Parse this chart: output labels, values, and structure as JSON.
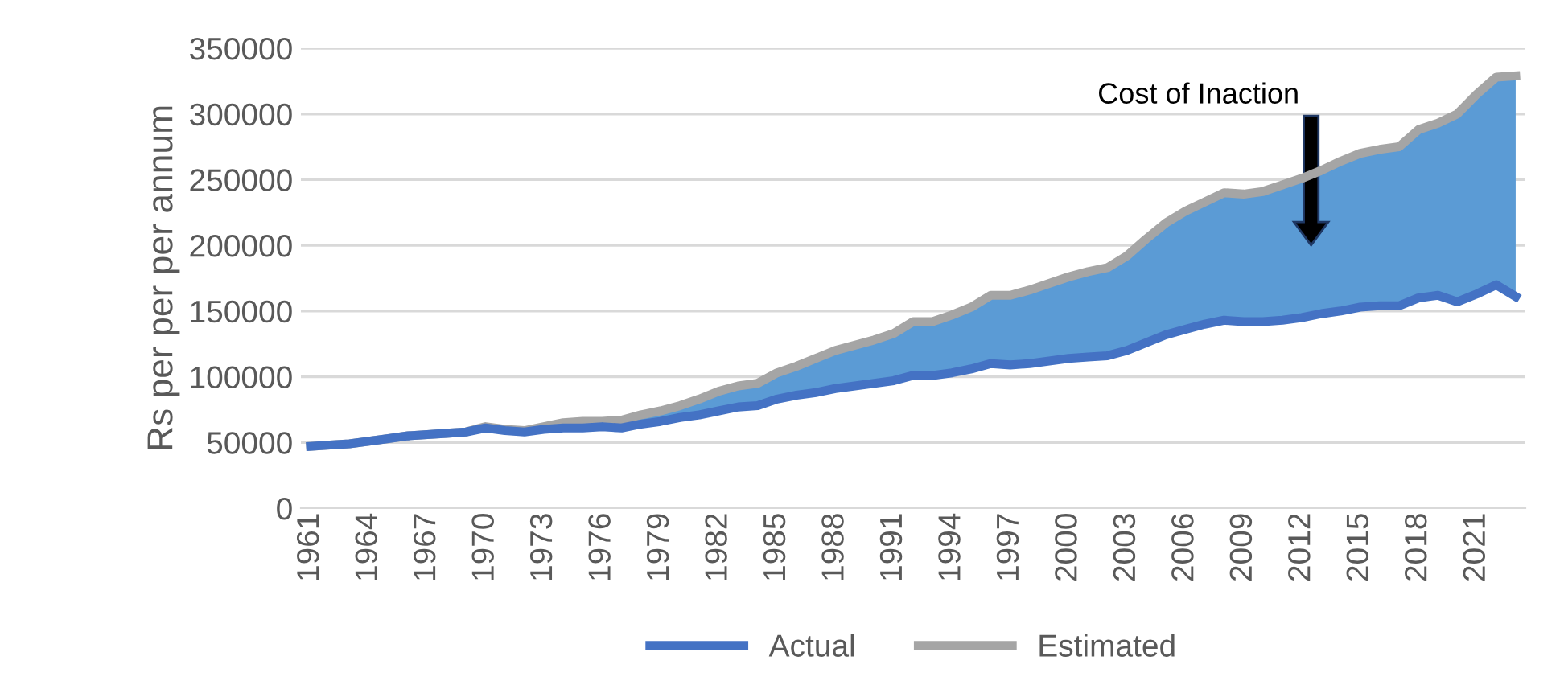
{
  "chart_data": {
    "type": "line",
    "ylabel": "Rs per per per annum",
    "categories": [
      "1961",
      null,
      null,
      "1964",
      null,
      null,
      "1967",
      null,
      null,
      "1970",
      null,
      null,
      "1973",
      null,
      null,
      "1976",
      null,
      null,
      "1979",
      null,
      null,
      "1982",
      null,
      null,
      "1985",
      null,
      null,
      "1988",
      null,
      null,
      "1991",
      null,
      null,
      "1994",
      null,
      null,
      "1997",
      null,
      null,
      "2000",
      null,
      null,
      "2003",
      null,
      null,
      "2006",
      null,
      null,
      "2009",
      null,
      null,
      "2012",
      null,
      null,
      "2015",
      null,
      null,
      "2018",
      null,
      null,
      "2021",
      null,
      null
    ],
    "series": [
      {
        "name": "Actual",
        "color": "#4472c4",
        "values": [
          47000,
          48000,
          49000,
          51000,
          53000,
          55000,
          56000,
          57000,
          58000,
          61000,
          59000,
          58000,
          60000,
          61000,
          61000,
          62000,
          61000,
          64000,
          66000,
          69000,
          71000,
          74000,
          77000,
          78000,
          83000,
          86000,
          88000,
          91000,
          93000,
          95000,
          97000,
          101000,
          101000,
          103000,
          106000,
          110000,
          109000,
          110000,
          112000,
          114000,
          115000,
          116000,
          120000,
          126000,
          132000,
          136000,
          140000,
          143000,
          142000,
          142000,
          143000,
          145000,
          148000,
          150000,
          153000,
          154000,
          154000,
          160000,
          162000,
          157000,
          163000,
          170000,
          161000
        ]
      },
      {
        "name": "Estimated",
        "color": "#a5a5a5",
        "colors": [
          "#5b9bd5",
          "#5b9bd5",
          "#5b9bd5",
          "#5b9bd5",
          "#5b9bd5",
          "#5b9bd5",
          "#5b9bd5",
          "#5b9bd5",
          "#5b9bd5",
          "#5b9bd5",
          "#5b9bd5",
          "#5b9bd5",
          "#5b9bd5",
          "#5b9bd5",
          "#5b9bd5",
          "#5b9bd5",
          "#5b9bd5",
          "#5b9bd5",
          "#5b9bd5",
          "#5b9bd5",
          "#5b9bd5",
          "#5b9bd5",
          "#5b9bd5",
          "#5b9bd5",
          "#5b9bd5",
          "#5b9bd5",
          "#5b9bd5",
          "#5b9bd5",
          "#5b9bd5",
          "#5b9bd5",
          "#5b9bd5",
          "#5b9bd5",
          "#5b9bd5",
          "#5b9bd5",
          "#5b9bd5",
          "#5b9bd5",
          "#5b9bd5",
          "#5b9bd5",
          "#5b9bd5",
          "#5b9bd5",
          "#5b9bd5",
          "#5b9bd5",
          "#5b9bd5",
          "#5b9bd5",
          "#5b9bd5",
          "#5b9bd5",
          "#5b9bd5",
          "#5b9bd5",
          "#5b9bd5",
          "#5b9bd5",
          "#5b9bd5",
          "#5b9bd5",
          "#5b9bd5",
          "#5b9bd5",
          "#5b9bd5",
          "#5b9bd5",
          "#5b9bd5",
          "#5b9bd5",
          "#5b9bd5",
          "#5b9bd5",
          "#5b9bd5",
          "#5b9bd5",
          "#5b9bd5"
        ],
        "values": [
          47000,
          48000,
          49000,
          51000,
          53000,
          55000,
          56000,
          57000,
          58000,
          62000,
          60000,
          59000,
          62000,
          65000,
          66000,
          66000,
          67000,
          71000,
          74000,
          78000,
          83000,
          89000,
          93000,
          95000,
          103000,
          108000,
          114000,
          120000,
          124000,
          128000,
          133000,
          142000,
          142000,
          147000,
          153000,
          162000,
          162000,
          166000,
          171000,
          176000,
          180000,
          183000,
          192000,
          205000,
          217000,
          226000,
          233000,
          240000,
          239000,
          241000,
          246000,
          251000,
          257000,
          264000,
          270000,
          273000,
          275000,
          288000,
          293000,
          300000,
          315000,
          328000,
          329000
        ],
        "lower": [
          47000,
          48000,
          49000,
          51000,
          53000,
          55000,
          56000,
          57000,
          58000,
          61000,
          59000,
          58000,
          60000,
          61000,
          61000,
          62000,
          61000,
          64000,
          66000,
          69000,
          71000,
          74000,
          77000,
          78000,
          83000,
          86000,
          88000,
          91000,
          93000,
          95000,
          97000,
          101000,
          101000,
          103000,
          106000,
          110000,
          109000,
          110000,
          112000,
          114000,
          115000,
          116000,
          120000,
          126000,
          132000,
          136000,
          140000,
          143000,
          142000,
          142000,
          143000,
          145000,
          148000,
          150000,
          153000,
          154000,
          154000,
          160000,
          162000,
          157000,
          163000,
          170000,
          161000
        ],
        "upper": [
          47000,
          48000,
          49000,
          51000,
          53000,
          55000,
          56000,
          57000,
          58000,
          62000,
          60000,
          59000,
          62000,
          65000,
          66000,
          66000,
          67000,
          71000,
          74000,
          78000,
          83000,
          89000,
          93000,
          95000,
          103000,
          108000,
          114000,
          120000,
          124000,
          128000,
          133000,
          142000,
          142000,
          147000,
          153000,
          162000,
          162000,
          166000,
          171000,
          176000,
          180000,
          183000,
          192000,
          205000,
          217000,
          226000,
          233000,
          240000,
          239000,
          241000,
          246000,
          251000,
          257000,
          264000,
          270000,
          273000,
          275000,
          288000,
          293000,
          300000,
          315000,
          328000,
          329000
        ]
      }
    ],
    "ylim": [
      0,
      350000
    ],
    "yticks": [
      0,
      50000,
      100000,
      150000,
      200000,
      250000,
      300000,
      350000
    ],
    "grid": "y",
    "legend": "bottom",
    "marker": "none",
    "line_style": "solid",
    "annotations": [
      "Cost of Inaction"
    ]
  }
}
